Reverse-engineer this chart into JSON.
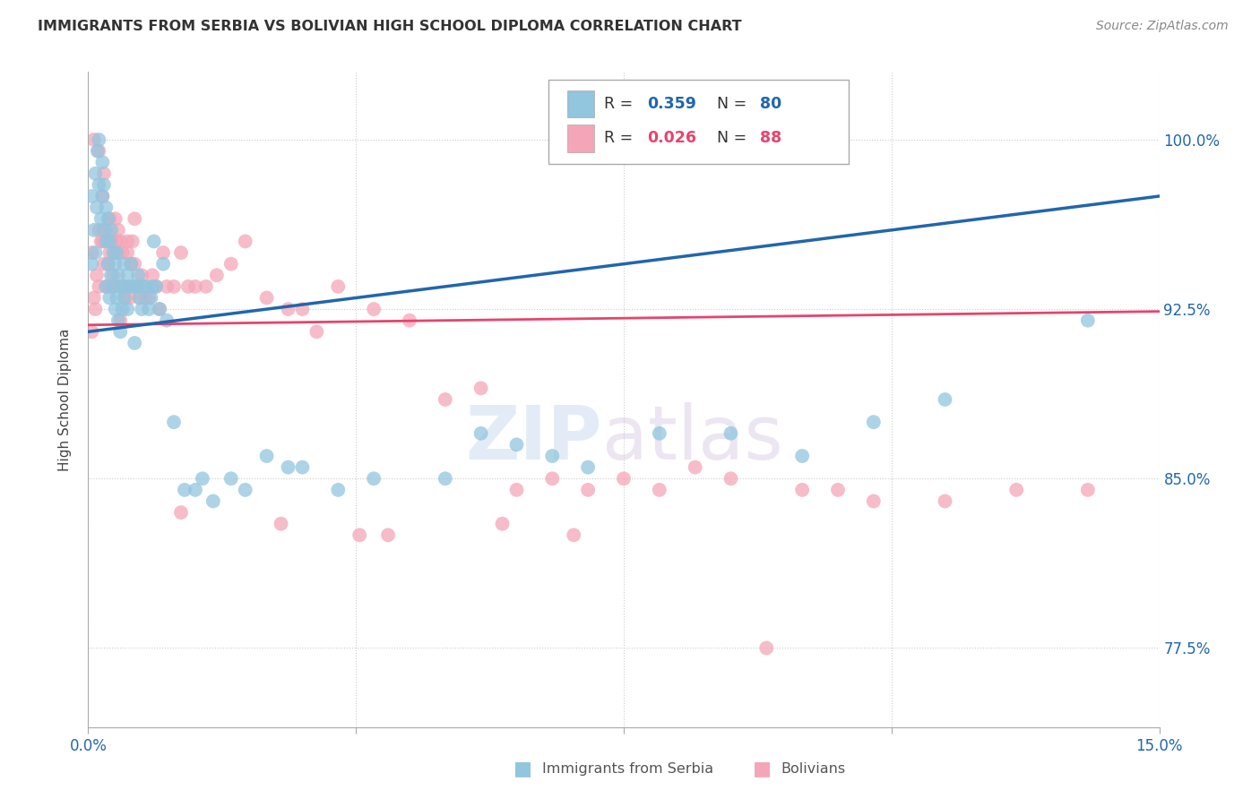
{
  "title": "IMMIGRANTS FROM SERBIA VS BOLIVIAN HIGH SCHOOL DIPLOMA CORRELATION CHART",
  "source": "Source: ZipAtlas.com",
  "ylabel": "High School Diploma",
  "yticks": [
    77.5,
    85.0,
    92.5,
    100.0
  ],
  "xlim": [
    0.0,
    15.0
  ],
  "ylim": [
    74.0,
    103.0
  ],
  "legend_label_blue": "Immigrants from Serbia",
  "legend_label_pink": "Bolivians",
  "R_blue": "0.359",
  "N_blue": "80",
  "R_pink": "0.026",
  "N_pink": "88",
  "blue_color": "#92c5de",
  "pink_color": "#f4a6b8",
  "blue_line_color": "#2166ac",
  "pink_line_color": "#e8436e",
  "blue_line_x0": 0.0,
  "blue_line_y0": 91.5,
  "blue_line_x1": 15.0,
  "blue_line_y1": 97.5,
  "pink_line_x0": 0.0,
  "pink_line_y0": 91.8,
  "pink_line_x1": 15.0,
  "pink_line_y1": 92.4,
  "blue_x": [
    0.05,
    0.05,
    0.08,
    0.1,
    0.1,
    0.12,
    0.13,
    0.15,
    0.15,
    0.18,
    0.2,
    0.2,
    0.22,
    0.22,
    0.25,
    0.25,
    0.25,
    0.28,
    0.28,
    0.3,
    0.3,
    0.32,
    0.32,
    0.35,
    0.35,
    0.38,
    0.38,
    0.4,
    0.4,
    0.42,
    0.42,
    0.45,
    0.45,
    0.48,
    0.5,
    0.5,
    0.52,
    0.55,
    0.55,
    0.58,
    0.6,
    0.62,
    0.65,
    0.68,
    0.7,
    0.72,
    0.75,
    0.78,
    0.8,
    0.85,
    0.88,
    0.9,
    0.92,
    0.95,
    1.0,
    1.05,
    1.1,
    1.2,
    1.35,
    1.5,
    1.6,
    1.75,
    2.0,
    2.2,
    2.5,
    2.8,
    3.0,
    3.5,
    4.0,
    5.0,
    5.5,
    6.0,
    6.5,
    7.0,
    8.0,
    9.0,
    10.0,
    11.0,
    12.0,
    14.0
  ],
  "blue_y": [
    94.5,
    97.5,
    96.0,
    95.0,
    98.5,
    97.0,
    99.5,
    100.0,
    98.0,
    96.5,
    99.0,
    97.5,
    98.0,
    96.0,
    95.5,
    97.0,
    93.5,
    94.5,
    96.5,
    93.0,
    95.5,
    96.0,
    94.0,
    95.0,
    93.5,
    94.5,
    92.5,
    95.0,
    93.0,
    94.0,
    92.0,
    93.5,
    91.5,
    92.5,
    93.0,
    94.5,
    93.5,
    94.0,
    92.5,
    93.5,
    94.5,
    93.5,
    91.0,
    93.5,
    94.0,
    93.0,
    92.5,
    93.5,
    93.5,
    92.5,
    93.0,
    93.5,
    95.5,
    93.5,
    92.5,
    94.5,
    92.0,
    87.5,
    84.5,
    84.5,
    85.0,
    84.0,
    85.0,
    84.5,
    86.0,
    85.5,
    85.5,
    84.5,
    85.0,
    85.0,
    87.0,
    86.5,
    86.0,
    85.5,
    87.0,
    87.0,
    86.0,
    87.5,
    88.5,
    92.0
  ],
  "pink_x": [
    0.05,
    0.05,
    0.08,
    0.1,
    0.12,
    0.15,
    0.15,
    0.18,
    0.2,
    0.2,
    0.22,
    0.25,
    0.25,
    0.28,
    0.3,
    0.3,
    0.32,
    0.35,
    0.35,
    0.38,
    0.4,
    0.42,
    0.45,
    0.45,
    0.48,
    0.5,
    0.52,
    0.55,
    0.58,
    0.6,
    0.62,
    0.65,
    0.68,
    0.7,
    0.72,
    0.75,
    0.8,
    0.85,
    0.9,
    0.95,
    1.0,
    1.05,
    1.1,
    1.2,
    1.3,
    1.4,
    1.5,
    1.65,
    1.8,
    2.0,
    2.2,
    2.5,
    2.8,
    3.0,
    3.2,
    3.5,
    4.0,
    4.5,
    5.0,
    5.5,
    6.0,
    6.5,
    7.0,
    7.5,
    8.0,
    8.5,
    9.0,
    10.0,
    11.0,
    12.0,
    13.0,
    14.0,
    1.3,
    2.7,
    3.8,
    4.2,
    5.8,
    6.8,
    9.5,
    10.5,
    0.08,
    0.15,
    0.22,
    0.3,
    0.38,
    0.45,
    0.55,
    0.65
  ],
  "pink_y": [
    91.5,
    95.0,
    93.0,
    92.5,
    94.0,
    93.5,
    96.0,
    95.5,
    95.5,
    97.5,
    94.5,
    96.0,
    93.5,
    94.5,
    95.0,
    93.5,
    95.5,
    93.5,
    94.0,
    95.0,
    95.5,
    96.0,
    93.5,
    92.0,
    95.0,
    93.5,
    93.0,
    95.0,
    93.0,
    94.5,
    95.5,
    94.5,
    93.5,
    93.5,
    93.0,
    94.0,
    93.0,
    93.0,
    94.0,
    93.5,
    92.5,
    95.0,
    93.5,
    93.5,
    95.0,
    93.5,
    93.5,
    93.5,
    94.0,
    94.5,
    95.5,
    93.0,
    92.5,
    92.5,
    91.5,
    93.5,
    92.5,
    92.0,
    88.5,
    89.0,
    84.5,
    85.0,
    84.5,
    85.0,
    84.5,
    85.5,
    85.0,
    84.5,
    84.0,
    84.0,
    84.5,
    84.5,
    83.5,
    83.0,
    82.5,
    82.5,
    83.0,
    82.5,
    77.5,
    84.5,
    100.0,
    99.5,
    98.5,
    96.5,
    96.5,
    95.5,
    95.5,
    96.5
  ]
}
